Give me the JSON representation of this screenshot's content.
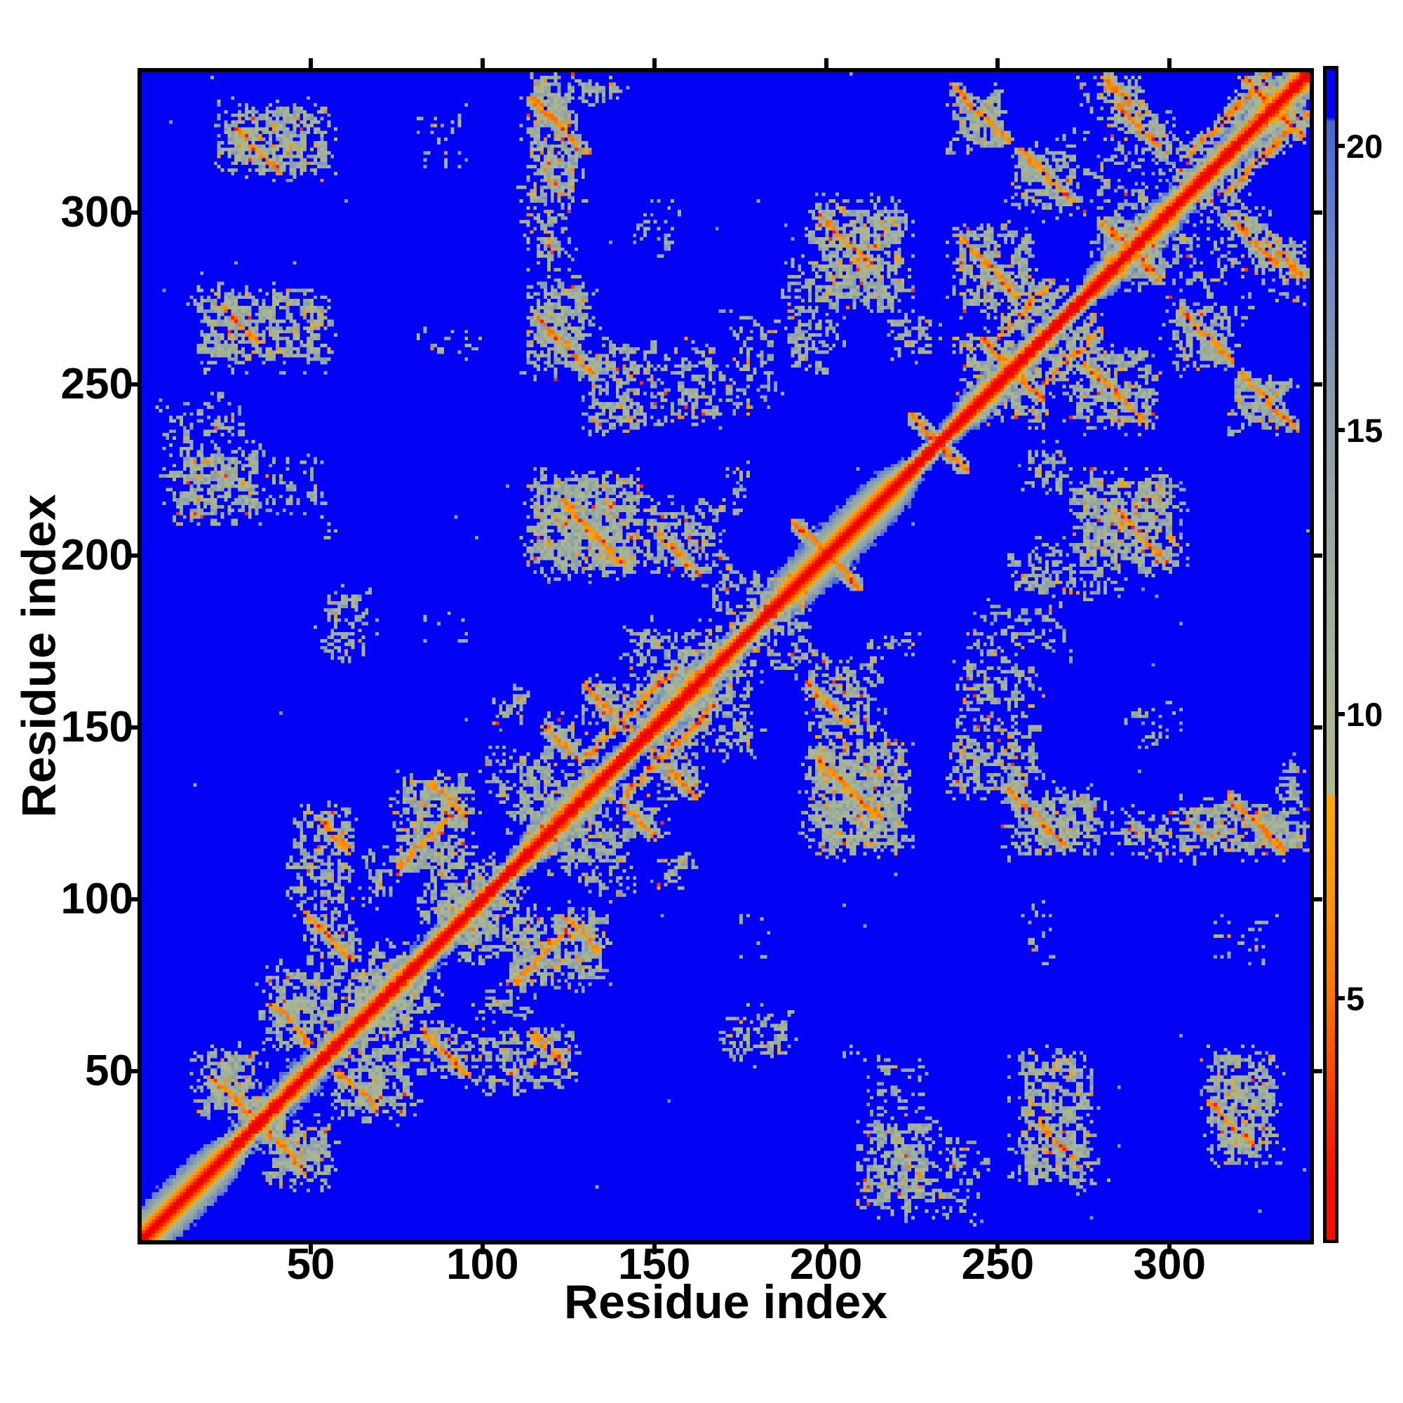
{
  "chart_data": {
    "type": "heatmap",
    "title": "",
    "xlabel": "Residue index",
    "ylabel": "Residue index",
    "n_residues": 340,
    "axis_range": [
      0.79,
      340.8
    ],
    "x_ticks": [
      50,
      100,
      150,
      200,
      250,
      300
    ],
    "y_ticks": [
      50,
      100,
      150,
      200,
      250,
      300
    ],
    "grid": false,
    "legend_position": "right-colorbar",
    "colorbar": {
      "ticks": [
        5,
        10,
        15,
        20
      ],
      "vmin": 0.76,
      "vmax": 21.34
    },
    "colormap_stops": [
      [
        0.0,
        "#e60000"
      ],
      [
        1.8,
        "#fa0c00"
      ],
      [
        3.5,
        "#ff4000"
      ],
      [
        5.0,
        "#ff7200"
      ],
      [
        6.6,
        "#ff9300"
      ],
      [
        8.55,
        "#ffa800"
      ],
      [
        8.62,
        "#afba8c"
      ],
      [
        11.0,
        "#a6b394"
      ],
      [
        13.5,
        "#96a7a3"
      ],
      [
        16.0,
        "#8398b0"
      ],
      [
        18.0,
        "#6f86c8"
      ],
      [
        19.7,
        "#5272d8"
      ],
      [
        20.42,
        "#4865cd"
      ],
      [
        20.5,
        "#0202f4"
      ],
      [
        23.0,
        "#0202f4"
      ]
    ],
    "background_value": 23,
    "frame_color": "#000000",
    "map_blue": "#0202f4",
    "diagonal_segments": [
      [
        0,
        26,
        8.5,
        1
      ],
      [
        26,
        36,
        5,
        0
      ],
      [
        36,
        50,
        6.5,
        0
      ],
      [
        50,
        62,
        5,
        0
      ],
      [
        62,
        78,
        6.5,
        0
      ],
      [
        78,
        100,
        5.5,
        0
      ],
      [
        100,
        113,
        4,
        0
      ],
      [
        113,
        137,
        7,
        0
      ],
      [
        137,
        148,
        4.5,
        0
      ],
      [
        148,
        172,
        7,
        0
      ],
      [
        172,
        186,
        4.5,
        0
      ],
      [
        186,
        222,
        8.5,
        1
      ],
      [
        222,
        240,
        4,
        0
      ],
      [
        240,
        262,
        6.5,
        0
      ],
      [
        262,
        278,
        4,
        0
      ],
      [
        278,
        302,
        7,
        0
      ],
      [
        302,
        318,
        5.5,
        0
      ],
      [
        318,
        340,
        7,
        0
      ]
    ],
    "contact_clusters": [
      {
        "i": [
          17,
          35
        ],
        "j": [
          36,
          56
        ],
        "t": "b",
        "d": 0.72,
        "o": 0.05
      },
      {
        "i": [
          22,
          30
        ],
        "j": [
          39,
          47
        ],
        "t": "a",
        "s": 0.75
      },
      {
        "i": [
          36,
          60
        ],
        "j": [
          55,
          80
        ],
        "t": "b",
        "d": 0.58,
        "o": 0.05
      },
      {
        "i": [
          40,
          48
        ],
        "j": [
          59,
          68
        ],
        "t": "a",
        "s": 0.5
      },
      {
        "i": [
          55,
          80
        ],
        "j": [
          60,
          88
        ],
        "t": "b",
        "d": 0.5,
        "o": 0.04
      },
      {
        "i": [
          80,
          105
        ],
        "j": [
          86,
          112
        ],
        "t": "b",
        "d": 0.5,
        "o": 0.04
      },
      {
        "i": [
          48,
          62
        ],
        "j": [
          82,
          97
        ],
        "t": "b",
        "d": 0.62,
        "o": 0.04
      },
      {
        "i": [
          50,
          60
        ],
        "j": [
          84,
          94
        ],
        "t": "a",
        "s": 0.8
      },
      {
        "i": [
          44,
          63
        ],
        "j": [
          95,
          126
        ],
        "t": "b",
        "d": 0.5,
        "o": 0.06
      },
      {
        "i": [
          54,
          60
        ],
        "j": [
          113,
          122
        ],
        "t": "a",
        "s": 0.5
      },
      {
        "i": [
          62,
          74
        ],
        "j": [
          99,
          114
        ],
        "t": "b",
        "d": 0.46,
        "o": 0.04
      },
      {
        "i": [
          74,
          97
        ],
        "j": [
          106,
          136
        ],
        "t": "b",
        "d": 0.62,
        "o": 0.05
      },
      {
        "i": [
          77,
          89
        ],
        "j": [
          110,
          123
        ],
        "t": "p",
        "s": 0.75
      },
      {
        "i": [
          86,
          94
        ],
        "j": [
          124,
          133
        ],
        "t": "a",
        "s": 0.5
      },
      {
        "i": [
          100,
          112
        ],
        "j": [
          128,
          143
        ],
        "t": "b",
        "d": 0.58,
        "o": 0.06
      },
      {
        "i": [
          108,
          132
        ],
        "j": [
          115,
          145
        ],
        "t": "b",
        "d": 0.5,
        "o": 0.05
      },
      {
        "i": [
          140,
          168
        ],
        "j": [
          150,
          180
        ],
        "t": "b",
        "d": 0.46,
        "o": 0.05
      },
      {
        "i": [
          148,
          170
        ],
        "j": [
          154,
          178
        ],
        "t": "b",
        "d": 0.42,
        "o": 0.04
      },
      {
        "i": [
          165,
          188
        ],
        "j": [
          172,
          196
        ],
        "t": "b",
        "d": 0.4,
        "o": 0.04
      },
      {
        "i": [
          103,
          113
        ],
        "j": [
          150,
          162
        ],
        "t": "b",
        "d": 0.46,
        "o": 0.04
      },
      {
        "i": [
          118,
          129
        ],
        "j": [
          139,
          153
        ],
        "t": "b",
        "d": 0.6,
        "o": 0.05
      },
      {
        "i": [
          119,
          127
        ],
        "j": [
          141,
          149
        ],
        "t": "a",
        "s": 0.6
      },
      {
        "i": [
          130,
          143
        ],
        "j": [
          149,
          164
        ],
        "t": "b",
        "d": 0.6,
        "o": 0.05
      },
      {
        "i": [
          131,
          141
        ],
        "j": [
          151,
          161
        ],
        "t": "a",
        "s": 0.7
      },
      {
        "i": [
          132,
          154
        ],
        "j": [
          143,
          165
        ],
        "t": "p",
        "s": 0.8
      },
      {
        "i": [
          53,
          67
        ],
        "j": [
          170,
          189
        ],
        "t": "b",
        "d": 0.52,
        "o": 0.05
      },
      {
        "i": [
          8,
          36
        ],
        "j": [
          210,
          232
        ],
        "t": "b",
        "d": 0.62,
        "o": 0.05
      },
      {
        "i": [
          36,
          54
        ],
        "j": [
          212,
          228
        ],
        "t": "b",
        "d": 0.34,
        "o": 0.03
      },
      {
        "i": [
          6,
          32
        ],
        "j": [
          230,
          246
        ],
        "t": "b",
        "d": 0.38,
        "o": 0.04
      },
      {
        "i": [
          52,
          60
        ],
        "j": [
          204,
          212
        ],
        "t": "b",
        "d": 0.28,
        "o": 0.01
      },
      {
        "i": [
          16,
          56
        ],
        "j": [
          255,
          277
        ],
        "t": "b",
        "d": 0.58,
        "o": 0.05
      },
      {
        "i": [
          24,
          34
        ],
        "j": [
          263,
          272
        ],
        "t": "a",
        "s": 0.55
      },
      {
        "i": [
          23,
          56
        ],
        "j": [
          311,
          331
        ],
        "t": "b",
        "d": 0.62,
        "o": 0.06
      },
      {
        "i": [
          29,
          40
        ],
        "j": [
          313,
          322
        ],
        "t": "a",
        "s": 0.5
      },
      {
        "i": [
          80,
          96
        ],
        "j": [
          312,
          331
        ],
        "t": "b",
        "d": 0.2,
        "o": 0.02
      },
      {
        "i": [
          82,
          96
        ],
        "j": [
          174,
          183
        ],
        "t": "b",
        "d": 0.2,
        "o": 0.01
      },
      {
        "i": [
          81,
          96
        ],
        "j": [
          207,
          212
        ],
        "t": "b",
        "d": 0.16,
        "o": 0.01
      },
      {
        "i": [
          80,
          98
        ],
        "j": [
          256,
          266
        ],
        "t": "b",
        "d": 0.2,
        "o": 0.01
      },
      {
        "i": [
          81,
          96
        ],
        "j": [
          313,
          318
        ],
        "t": "b",
        "d": 0.2,
        "o": 0.01
      },
      {
        "i": [
          81,
          96
        ],
        "j": [
          322,
          329
        ],
        "t": "b",
        "d": 0.26,
        "o": 0.03
      },
      {
        "i": [
          113,
          132
        ],
        "j": [
          252,
          281
        ],
        "t": "b",
        "d": 0.62,
        "o": 0.06
      },
      {
        "i": [
          117,
          130
        ],
        "j": [
          255,
          268
        ],
        "t": "a",
        "s": 0.7
      },
      {
        "i": [
          130,
          147
        ],
        "j": [
          236,
          262
        ],
        "t": "b",
        "d": 0.58,
        "o": 0.06
      },
      {
        "i": [
          147,
          170
        ],
        "j": [
          238,
          262
        ],
        "t": "b",
        "d": 0.45,
        "o": 0.05
      },
      {
        "i": [
          170,
          185
        ],
        "j": [
          242,
          270
        ],
        "t": "b",
        "d": 0.38,
        "o": 0.04
      },
      {
        "i": [
          113,
          146
        ],
        "j": [
          194,
          224
        ],
        "t": "b",
        "d": 0.68,
        "o": 0.06
      },
      {
        "i": [
          124,
          140
        ],
        "j": [
          199,
          214
        ],
        "t": "a",
        "s": 0.95
      },
      {
        "i": [
          146,
          170
        ],
        "j": [
          194,
          216
        ],
        "t": "b",
        "d": 0.52,
        "o": 0.06
      },
      {
        "i": [
          150,
          162
        ],
        "j": [
          196,
          206
        ],
        "t": "a",
        "s": 0.5
      },
      {
        "i": [
          170,
          178
        ],
        "j": [
          209,
          226
        ],
        "t": "b",
        "d": 0.34,
        "o": 0.03
      },
      {
        "i": [
          112,
          128
        ],
        "j": [
          300,
          340
        ],
        "t": "b",
        "d": 0.65,
        "o": 0.07
      },
      {
        "i": [
          115,
          129
        ],
        "j": [
          319,
          331
        ],
        "t": "a",
        "s": 0.85
      },
      {
        "i": [
          112,
          126
        ],
        "j": [
          283,
          302
        ],
        "t": "b",
        "d": 0.52,
        "o": 0.06
      },
      {
        "i": [
          144,
          156
        ],
        "j": [
          288,
          305
        ],
        "t": "b",
        "d": 0.26,
        "o": 0.02
      },
      {
        "i": [
          126,
          142
        ],
        "j": [
          330,
          340
        ],
        "t": "b",
        "d": 0.4,
        "o": 0.05
      },
      {
        "i": [
          188,
          203
        ],
        "j": [
          252,
          286
        ],
        "t": "b",
        "d": 0.52,
        "o": 0.05
      },
      {
        "i": [
          195,
          224
        ],
        "j": [
          271,
          303
        ],
        "t": "b",
        "d": 0.62,
        "o": 0.06
      },
      {
        "i": [
          200,
          211
        ],
        "j": [
          286,
          297
        ],
        "t": "a",
        "s": 0.5
      },
      {
        "i": [
          218,
          232
        ],
        "j": [
          257,
          271
        ],
        "t": "b",
        "d": 0.44,
        "o": 0.04
      },
      {
        "i": [
          237,
          261
        ],
        "j": [
          271,
          296
        ],
        "t": "b",
        "d": 0.58,
        "o": 0.06
      },
      {
        "i": [
          240,
          254
        ],
        "j": [
          277,
          291
        ],
        "t": "a",
        "s": 0.7
      },
      {
        "i": [
          249,
          271
        ],
        "j": [
          263,
          281
        ],
        "t": "b",
        "d": 0.52,
        "o": 0.05
      },
      {
        "i": [
          252,
          264
        ],
        "j": [
          266,
          278
        ],
        "t": "p",
        "s": 0.5
      },
      {
        "i": [
          238,
          258
        ],
        "j": [
          244,
          266
        ],
        "t": "b",
        "d": 0.5,
        "o": 0.05
      },
      {
        "i": [
          278,
          298
        ],
        "j": [
          284,
          306
        ],
        "t": "b",
        "d": 0.46,
        "o": 0.05
      },
      {
        "i": [
          296,
          316
        ],
        "j": [
          302,
          322
        ],
        "t": "b",
        "d": 0.42,
        "o": 0.04
      },
      {
        "i": [
          318,
          338
        ],
        "j": [
          322,
          340
        ],
        "t": "b",
        "d": 0.46,
        "o": 0.05
      },
      {
        "i": [
          236,
          253
        ],
        "j": [
          318,
          336
        ],
        "t": "b",
        "d": 0.62,
        "o": 0.06
      },
      {
        "i": [
          238,
          251
        ],
        "j": [
          322,
          335
        ],
        "t": "a",
        "s": 0.9
      },
      {
        "i": [
          254,
          274
        ],
        "j": [
          300,
          319
        ],
        "t": "b",
        "d": 0.58,
        "o": 0.06
      },
      {
        "i": [
          258,
          270
        ],
        "j": [
          304,
          316
        ],
        "t": "a",
        "s": 0.6
      },
      {
        "i": [
          282,
          302
        ],
        "j": [
          314,
          331
        ],
        "t": "b",
        "d": 0.58,
        "o": 0.06
      },
      {
        "i": [
          286,
          298
        ],
        "j": [
          318,
          329
        ],
        "t": "a",
        "s": 0.45
      },
      {
        "i": [
          277,
          295
        ],
        "j": [
          299,
          317
        ],
        "t": "b",
        "d": 0.4,
        "o": 0.04
      },
      {
        "i": [
          264,
          276
        ],
        "j": [
          308,
          325
        ],
        "t": "b",
        "d": 0.32,
        "o": 0.03
      },
      {
        "i": [
          279,
          292
        ],
        "j": [
          326,
          340
        ],
        "t": "b",
        "d": 0.48,
        "o": 0.05
      },
      {
        "i": [
          282,
          290
        ],
        "j": [
          329,
          338
        ],
        "t": "a",
        "s": 0.5
      },
      {
        "i": [
          272,
          285
        ],
        "j": [
          330,
          340
        ],
        "t": "b",
        "d": 0.32,
        "o": 0.03
      },
      {
        "i": [
          307,
          327
        ],
        "j": [
          318,
          338
        ],
        "t": "p",
        "s": 0.7
      },
      {
        "i": [
          192,
          208
        ],
        "j": [
          192,
          208
        ],
        "t": "a",
        "s": 0.85
      },
      {
        "i": [
          226,
          239
        ],
        "j": [
          226,
          239
        ],
        "t": "a",
        "s": 0.65
      },
      {
        "i": [
          247,
          261
        ],
        "j": [
          247,
          261
        ],
        "t": "a",
        "s": 0.7
      },
      {
        "i": [
          282,
          295
        ],
        "j": [
          282,
          295
        ],
        "t": "a",
        "s": 0.55
      },
      {
        "i": [
          323,
          337
        ],
        "j": [
          323,
          337
        ],
        "t": "a",
        "s": 0.7
      }
    ]
  }
}
